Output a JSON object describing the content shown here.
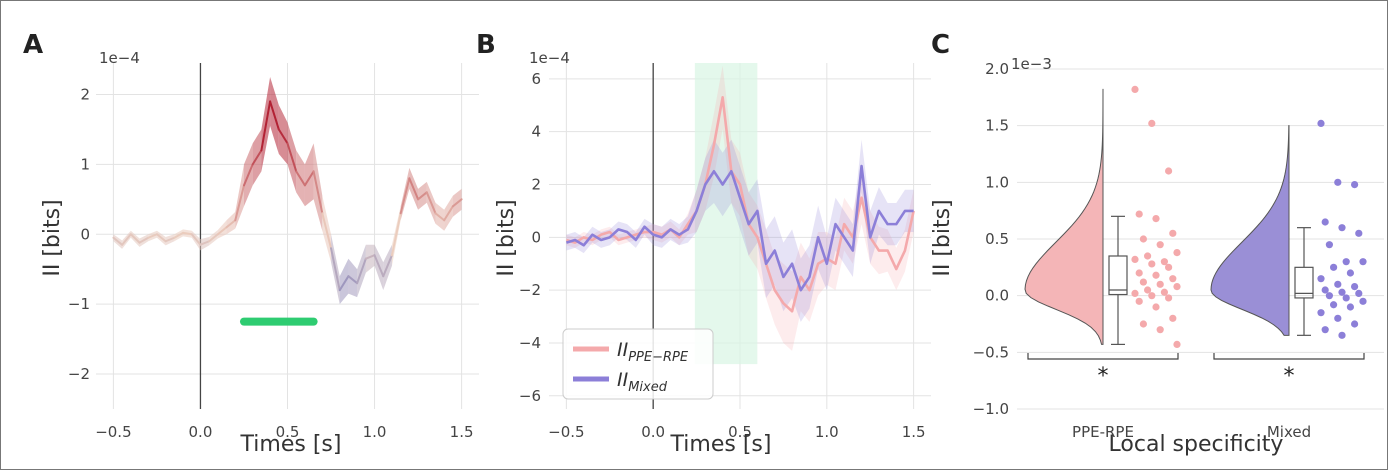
{
  "chart_data": [
    {
      "panel": "A",
      "type": "line",
      "xlabel": "Times [s]",
      "ylabel": "II [bits]",
      "y_scale_note": "1e−4",
      "xlim": [
        -0.6,
        1.6
      ],
      "ylim": [
        -2.5,
        2.45
      ],
      "xticks": [
        -0.5,
        0.0,
        0.5,
        1.0,
        1.5
      ],
      "xtick_labels": [
        "−0.5",
        "0.0",
        "0.5",
        "1.0",
        "1.5"
      ],
      "yticks": [
        -2,
        -1,
        0,
        1,
        2
      ],
      "ytick_labels": [
        "−2",
        "−1",
        "0",
        "1",
        "2"
      ],
      "grid": true,
      "vline_x": 0,
      "significance_bar": {
        "x_start": 0.25,
        "x_end": 0.65,
        "y": -1.25,
        "color": "#2ecc71"
      },
      "series": [
        {
          "x": [
            -0.5,
            -0.45,
            -0.4,
            -0.35,
            -0.3,
            -0.25,
            -0.2,
            -0.15,
            -0.1,
            -0.05,
            0.0,
            0.05,
            0.1,
            0.15,
            0.2,
            0.25,
            0.3,
            0.35,
            0.4,
            0.45,
            0.5,
            0.55,
            0.6,
            0.65,
            0.7,
            0.75,
            0.8,
            0.85,
            0.9,
            0.95,
            1.0,
            1.05,
            1.1,
            1.15,
            1.2,
            1.25,
            1.3,
            1.35,
            1.4,
            1.45,
            1.5
          ],
          "y": [
            -0.05,
            -0.15,
            0.0,
            -0.12,
            -0.05,
            0.0,
            -0.1,
            -0.05,
            0.02,
            0.0,
            -0.15,
            -0.1,
            0.0,
            0.1,
            0.2,
            0.7,
            1.0,
            1.2,
            1.9,
            1.5,
            1.3,
            0.9,
            0.7,
            0.9,
            0.3,
            -0.2,
            -0.8,
            -0.6,
            -0.7,
            -0.35,
            -0.3,
            -0.6,
            -0.3,
            0.3,
            0.8,
            0.5,
            0.6,
            0.3,
            0.2,
            0.4,
            0.5
          ],
          "err": [
            0.05,
            0.06,
            0.05,
            0.06,
            0.05,
            0.05,
            0.06,
            0.05,
            0.05,
            0.05,
            0.08,
            0.06,
            0.06,
            0.1,
            0.12,
            0.3,
            0.3,
            0.3,
            0.35,
            0.35,
            0.3,
            0.3,
            0.3,
            0.4,
            0.25,
            0.2,
            0.2,
            0.25,
            0.2,
            0.2,
            0.15,
            0.2,
            0.15,
            0.1,
            0.15,
            0.15,
            0.15,
            0.15,
            0.15,
            0.15,
            0.15
          ]
        }
      ]
    },
    {
      "panel": "B",
      "type": "line",
      "xlabel": "Times [s]",
      "ylabel": "II [bits]",
      "y_scale_note": "1e−4",
      "xlim": [
        -0.6,
        1.6
      ],
      "ylim": [
        -6.5,
        6.6
      ],
      "xticks": [
        -0.5,
        0.0,
        0.5,
        1.0,
        1.5
      ],
      "xtick_labels": [
        "−0.5",
        "0.0",
        "0.5",
        "1.0",
        "1.5"
      ],
      "yticks": [
        -6,
        -4,
        -2,
        0,
        2,
        4,
        6
      ],
      "ytick_labels": [
        "−6",
        "−4",
        "−2",
        "0",
        "2",
        "4",
        "6"
      ],
      "grid": true,
      "vline_x": 0,
      "highlight_window": {
        "x_start": 0.24,
        "x_end": 0.6,
        "y_start": -4.8,
        "y_end": 6.6,
        "color": "#d9f5e4"
      },
      "legend": {
        "placement": "lower-left"
      },
      "series": [
        {
          "name": "II_PPE−RPE",
          "name_main": "II",
          "name_sub": "PPE−RPE",
          "color": "#f4a9ab",
          "x": [
            -0.5,
            -0.45,
            -0.4,
            -0.35,
            -0.3,
            -0.25,
            -0.2,
            -0.15,
            -0.1,
            -0.05,
            0.0,
            0.05,
            0.1,
            0.15,
            0.2,
            0.25,
            0.3,
            0.35,
            0.4,
            0.45,
            0.5,
            0.55,
            0.6,
            0.65,
            0.7,
            0.75,
            0.8,
            0.85,
            0.9,
            0.95,
            1.0,
            1.05,
            1.1,
            1.15,
            1.2,
            1.25,
            1.3,
            1.35,
            1.4,
            1.45,
            1.5
          ],
          "y": [
            -0.1,
            -0.2,
            0.0,
            -0.1,
            0.1,
            0.2,
            -0.1,
            0.0,
            0.1,
            0.2,
            0.2,
            0.1,
            0.3,
            0.0,
            0.5,
            1.0,
            2.0,
            3.5,
            5.3,
            2.5,
            2.0,
            0.5,
            0.0,
            -1.0,
            -2.0,
            -2.5,
            -2.8,
            -1.5,
            -2.0,
            -1.0,
            -0.8,
            -1.0,
            0.5,
            0.0,
            1.5,
            0.0,
            -0.5,
            -0.5,
            -1.2,
            -0.5,
            1.0
          ],
          "err": [
            0.2,
            0.2,
            0.2,
            0.2,
            0.2,
            0.2,
            0.2,
            0.2,
            0.2,
            0.2,
            0.3,
            0.3,
            0.3,
            0.3,
            0.4,
            0.8,
            1.0,
            1.2,
            1.2,
            1.2,
            1.2,
            1.2,
            1.2,
            1.3,
            1.3,
            1.5,
            1.5,
            1.3,
            1.2,
            1.2,
            1.0,
            1.0,
            1.0,
            1.0,
            1.0,
            1.0,
            0.9,
            0.8,
            0.8,
            0.8,
            0.8
          ]
        },
        {
          "name": "II_Mixed",
          "name_main": "II",
          "name_sub": "Mixed",
          "color": "#8c7fd8",
          "x": [
            -0.5,
            -0.45,
            -0.4,
            -0.35,
            -0.3,
            -0.25,
            -0.2,
            -0.15,
            -0.1,
            -0.05,
            0.0,
            0.05,
            0.1,
            0.15,
            0.2,
            0.25,
            0.3,
            0.35,
            0.4,
            0.45,
            0.5,
            0.55,
            0.6,
            0.65,
            0.7,
            0.75,
            0.8,
            0.85,
            0.9,
            0.95,
            1.0,
            1.05,
            1.1,
            1.15,
            1.2,
            1.25,
            1.3,
            1.35,
            1.4,
            1.45,
            1.5
          ],
          "y": [
            -0.2,
            -0.1,
            -0.3,
            0.1,
            -0.1,
            0.0,
            0.3,
            0.2,
            -0.1,
            0.4,
            0.1,
            0.0,
            0.3,
            0.1,
            0.3,
            1.0,
            2.0,
            2.5,
            2.0,
            2.5,
            1.5,
            0.5,
            1.0,
            -1.0,
            -0.5,
            -1.5,
            -1.0,
            -2.0,
            -1.5,
            0.0,
            -1.0,
            0.5,
            0.0,
            -0.5,
            2.7,
            0.0,
            1.0,
            0.5,
            0.5,
            1.0,
            1.0
          ],
          "err": [
            0.3,
            0.3,
            0.3,
            0.3,
            0.3,
            0.3,
            0.3,
            0.3,
            0.3,
            0.3,
            0.4,
            0.4,
            0.4,
            0.4,
            0.5,
            0.8,
            1.0,
            1.2,
            1.2,
            1.2,
            1.2,
            1.2,
            1.2,
            1.3,
            1.3,
            1.3,
            1.3,
            1.2,
            1.2,
            1.2,
            1.0,
            1.0,
            1.0,
            1.0,
            1.0,
            1.0,
            0.9,
            0.8,
            0.8,
            0.8,
            0.8
          ]
        }
      ]
    },
    {
      "panel": "C",
      "type": "violin",
      "xlabel": "Local specificity",
      "ylabel": "II [bits]",
      "y_scale_note": "1e−3",
      "ylim": [
        -1.0,
        2.0
      ],
      "yticks": [
        -1.0,
        -0.5,
        0.0,
        0.5,
        1.0,
        1.5,
        2.0
      ],
      "ytick_labels": [
        "−1.0",
        "−0.5",
        "0.0",
        "0.5",
        "1.0",
        "1.5",
        "2.0"
      ],
      "grid": true,
      "categories": [
        "PPE-RPE",
        "Mixed"
      ],
      "significance_label": "*",
      "groups": [
        {
          "name": "PPE-RPE",
          "color": "#f4b5b7",
          "point_color": "#f4a9ab",
          "violin_min": -0.43,
          "violin_max": 1.82,
          "box": {
            "q1": 0.01,
            "median": 0.05,
            "q3": 0.35,
            "whisker_low": -0.43,
            "whisker_high": 0.7
          },
          "points": [
            1.82,
            1.52,
            1.1,
            0.72,
            0.68,
            0.55,
            0.5,
            0.45,
            0.38,
            0.35,
            0.3,
            0.32,
            0.28,
            0.25,
            0.2,
            0.18,
            0.15,
            0.12,
            0.1,
            0.08,
            0.05,
            0.03,
            0.02,
            0.0,
            -0.02,
            -0.05,
            -0.1,
            -0.2,
            -0.25,
            -0.3,
            -0.43
          ]
        },
        {
          "name": "Mixed",
          "color": "#9a8fd6",
          "point_color": "#8c7fd8",
          "violin_min": -0.35,
          "violin_max": 1.5,
          "box": {
            "q1": -0.02,
            "median": 0.02,
            "q3": 0.25,
            "whisker_low": -0.35,
            "whisker_high": 0.6
          },
          "points": [
            1.52,
            1.0,
            0.98,
            0.65,
            0.6,
            0.55,
            0.45,
            0.3,
            0.3,
            0.25,
            0.2,
            0.15,
            0.1,
            0.08,
            0.05,
            0.03,
            0.02,
            0.0,
            -0.02,
            -0.05,
            -0.08,
            -0.1,
            -0.15,
            -0.2,
            -0.25,
            -0.3,
            -0.35
          ]
        }
      ]
    }
  ]
}
